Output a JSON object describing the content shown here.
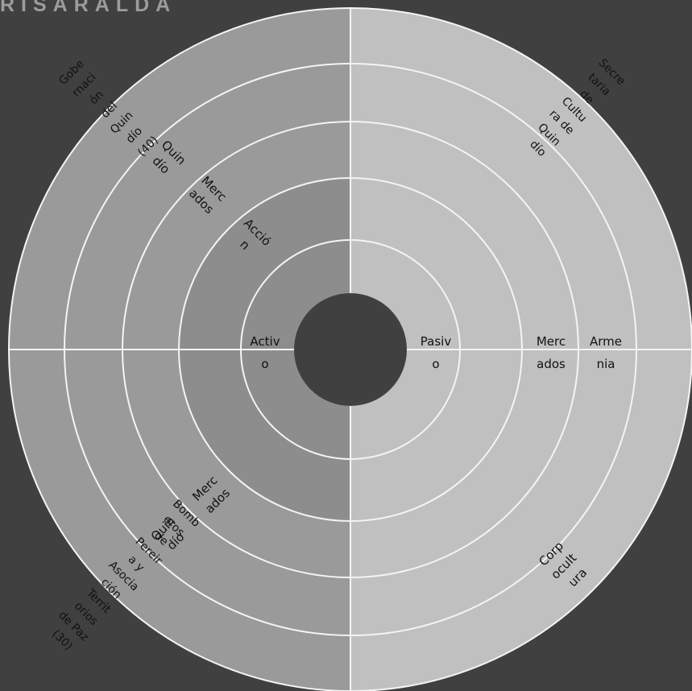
{
  "title": "RISARALDA",
  "colors": {
    "background": "#404040",
    "left_half": "#9a9a9a",
    "left_inner": "#8d8d8d",
    "right_half": "#c0c0c0",
    "ring_lines": "#f4f4f4",
    "center_hole": "#404040"
  },
  "rings": [
    {
      "side": "left",
      "label": "Activo"
    },
    {
      "side": "right",
      "label": "Pasivo"
    },
    {
      "side": "left",
      "label": "Acción"
    }
  ],
  "actors": {
    "top_left_outer": "Gobernación del Quindío (40)",
    "top_left_ring4": "Quindío",
    "top_left_ring3": "Mercados",
    "top_left_ring2": "Acción",
    "left_center": "Activo",
    "right_center": "Pasivo",
    "right_ring4": "Mercados",
    "right_outer": "Armenia",
    "top_right_outer": "Secretaria de Cultura de Quindío",
    "bottom_left_ring3": "Mercados",
    "bottom_left_ring4": "Quindío",
    "bottom_left_outer": "Bomberos de Pereira y Asociación Territorios de Paz (30)",
    "bottom_right_outer": "Corpocultura"
  }
}
